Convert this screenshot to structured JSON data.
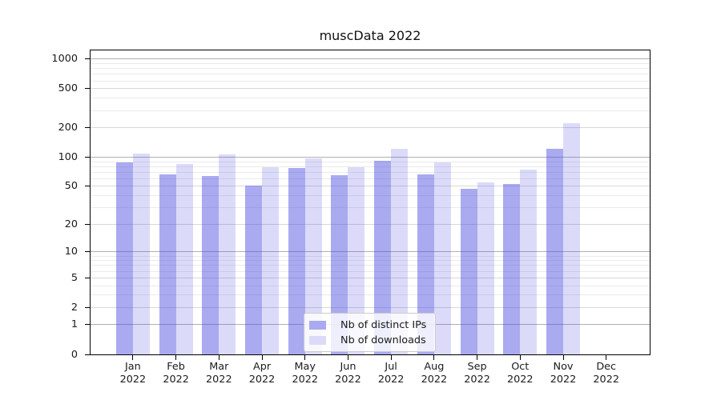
{
  "figure": {
    "title": "muscData 2022"
  },
  "chart_data": {
    "type": "bar",
    "title": "muscData 2022",
    "categories": [
      "Jan",
      "Feb",
      "Mar",
      "Apr",
      "May",
      "Jun",
      "Jul",
      "Aug",
      "Sep",
      "Oct",
      "Nov",
      "Dec"
    ],
    "category_year": "2022",
    "series": [
      {
        "name": "Nb of distinct IPs",
        "values": [
          88,
          67,
          64,
          51,
          77,
          65,
          91,
          67,
          47,
          53,
          123,
          0
        ],
        "fill": "rgba(75,75,225,0.47)",
        "swatch": "#aaaaf1"
      },
      {
        "name": "Nb of downloads",
        "values": [
          109,
          85,
          106,
          79,
          98,
          79,
          123,
          89,
          55,
          75,
          222,
          0
        ],
        "fill": "rgba(75,75,225,0.20)",
        "swatch": "#dbdbf9"
      }
    ],
    "y_ticks": [
      0,
      1,
      2,
      5,
      10,
      20,
      50,
      100,
      200,
      500,
      1000
    ],
    "y_scale": "log1p",
    "ylim": [
      0,
      1230
    ],
    "xlabel": "",
    "ylabel": "",
    "grid": true,
    "legend_position": "lower center"
  },
  "style": {
    "grid_major": "#b0b0b0",
    "grid_mid": "#d8d8d8",
    "grid_minor": "#ebebeb",
    "axis_color": "#000000",
    "text_color": "#1a1a1a",
    "legend_border": "#cccccc",
    "legend_bg": "rgba(255,255,255,0.8)"
  }
}
